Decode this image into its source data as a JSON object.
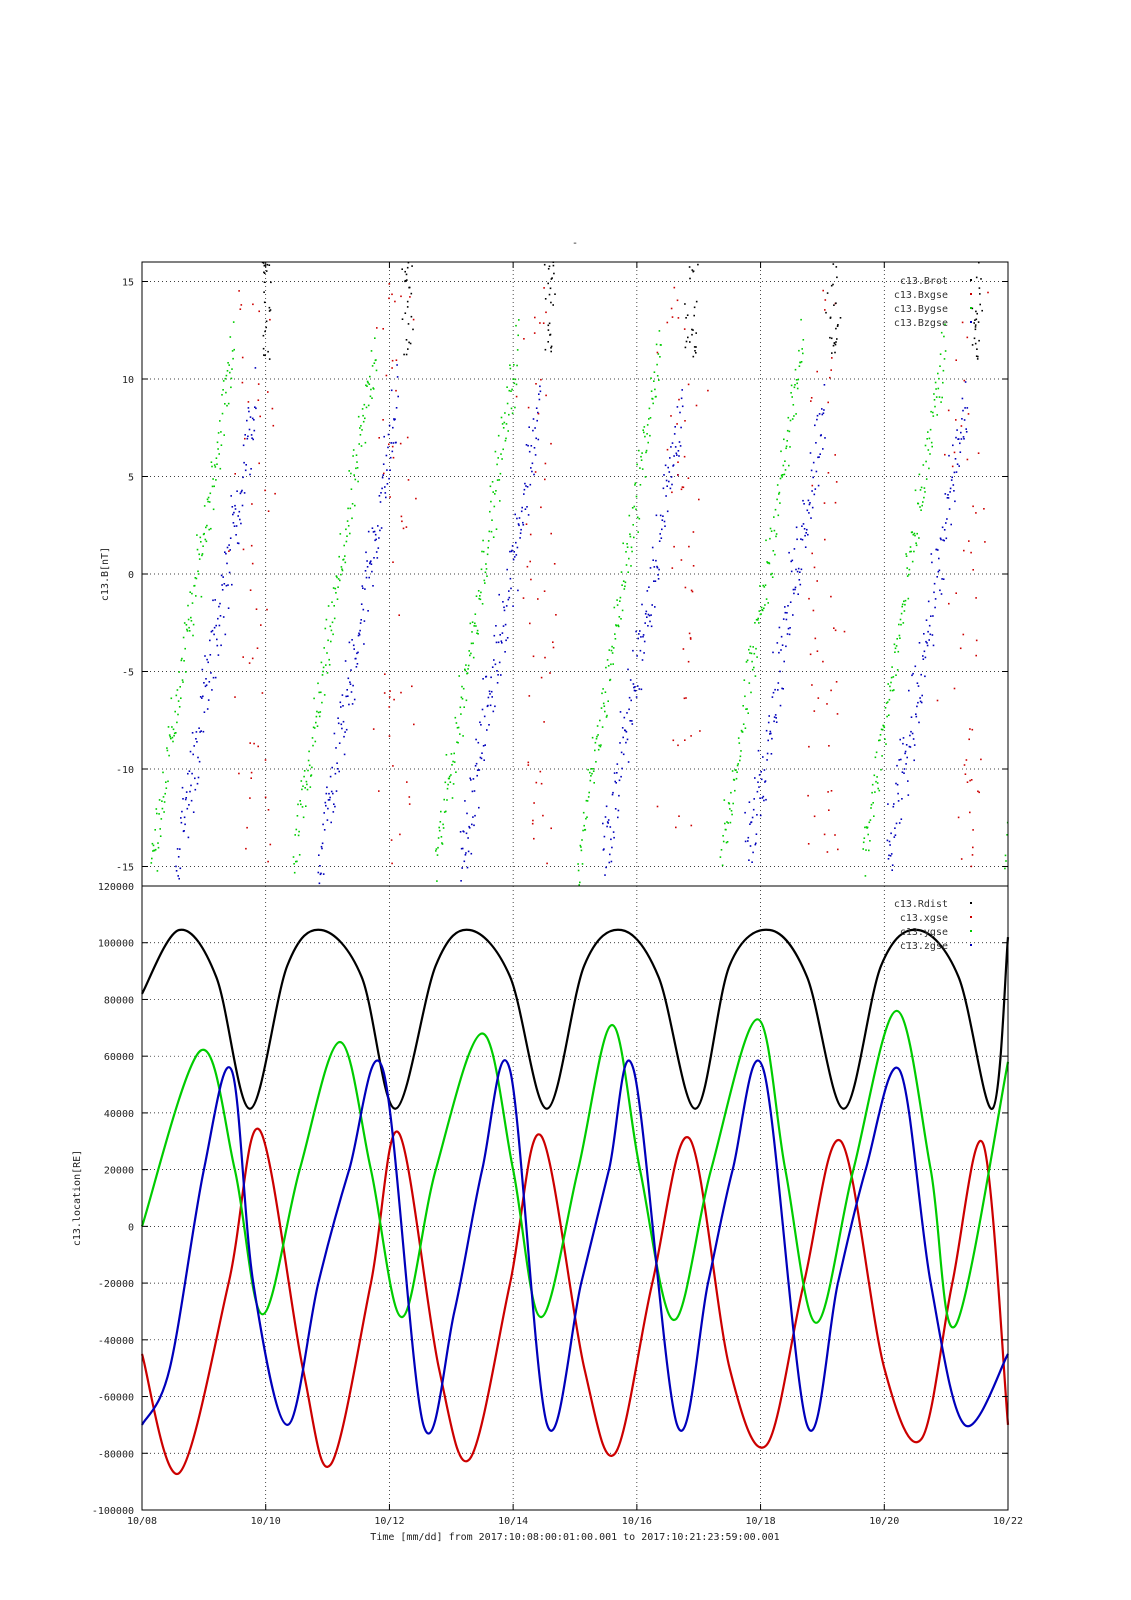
{
  "figure": {
    "top_title": "-",
    "footer": "Time [mm/dd]  from 2017:10:08:00:01:00.001  to  2017:10:21:23:59:00.001"
  },
  "chart_data": [
    {
      "type": "scatter",
      "ylabel": "c13.B[nT]",
      "xlim": [
        "10/08",
        "10/22"
      ],
      "ylim": [
        -16,
        16
      ],
      "yticks": [
        15,
        10,
        5,
        0,
        -5,
        -10,
        -15
      ],
      "grid": true,
      "legend_placement": "top-right",
      "legend": [
        "c13.Brot",
        "c13.Bxgse",
        "c13.Bygse",
        "c13.Bzgse"
      ],
      "colors": [
        "#000000",
        "#cc0000",
        "#00cc00",
        "#0000bb"
      ],
      "series": [
        {
          "name": "c13.Brot",
          "color": "#000000"
        },
        {
          "name": "c13.Bxgse",
          "color": "#cc0000"
        },
        {
          "name": "c13.Bygse",
          "color": "#00cc00"
        },
        {
          "name": "c13.Bzgse",
          "color": "#0000bb"
        }
      ]
    },
    {
      "type": "line",
      "ylabel": "c13.location[RE]",
      "xlabel": "Time [mm/dd]",
      "ylim": [
        -100000,
        120000
      ],
      "yticks": [
        120000,
        100000,
        80000,
        60000,
        40000,
        20000,
        0,
        -20000,
        -40000,
        -60000,
        -80000,
        -100000
      ],
      "xticks": [
        "10/08",
        "10/10",
        "10/12",
        "10/14",
        "10/16",
        "10/18",
        "10/20",
        "10/22"
      ],
      "grid": true,
      "legend_placement": "top-right",
      "legend": [
        "c13.Rdist",
        "c13.xgse",
        "c13.ygse",
        "c13.zgse"
      ],
      "colors": [
        "#000000",
        "#cc0000",
        "#00cc00",
        "#0000bb"
      ],
      "series": [
        {
          "name": "c13.Rdist",
          "color": "#000000",
          "x": [
            0.0,
            0.6,
            1.2,
            1.75,
            2.35,
            2.9,
            3.55,
            4.1,
            4.75,
            5.3,
            5.95,
            6.55,
            7.15,
            7.75,
            8.35,
            8.95,
            9.5,
            10.15,
            10.75,
            11.35,
            11.95,
            12.55,
            13.2,
            13.75,
            14.0
          ],
          "y": [
            82000,
            104500,
            88000,
            41500,
            92000,
            104500,
            88000,
            41500,
            92000,
            104500,
            88000,
            41500,
            92000,
            104500,
            88000,
            41500,
            92000,
            104500,
            88000,
            41500,
            92000,
            104500,
            88000,
            41500,
            102000
          ]
        },
        {
          "name": "c13.xgse",
          "color": "#cc0000",
          "x": [
            0.0,
            0.6,
            1.4,
            1.9,
            2.6,
            3.05,
            3.7,
            4.15,
            4.8,
            5.3,
            5.95,
            6.45,
            7.15,
            7.65,
            8.25,
            8.85,
            9.5,
            10.1,
            10.7,
            11.3,
            12.0,
            12.6,
            13.1,
            13.6,
            14.0
          ],
          "y": [
            -45000,
            -87000,
            -20000,
            34000,
            -50000,
            -84000,
            -20000,
            33000,
            -50000,
            -82000,
            -20000,
            32000,
            -50000,
            -80000,
            -20000,
            31000,
            -50000,
            -77000,
            -20000,
            30000,
            -50000,
            -75000,
            -20000,
            29000,
            -70000
          ]
        },
        {
          "name": "c13.ygse",
          "color": "#00cc00",
          "x": [
            0.0,
            0.95,
            1.5,
            1.95,
            2.55,
            3.2,
            3.7,
            4.2,
            4.75,
            5.5,
            6.0,
            6.45,
            7.05,
            7.6,
            8.05,
            8.6,
            9.2,
            9.95,
            10.4,
            10.9,
            11.5,
            12.2,
            12.75,
            13.15,
            14.0
          ],
          "y": [
            0,
            62000,
            20000,
            -31000,
            20000,
            65000,
            20000,
            -32000,
            20000,
            68000,
            20000,
            -32000,
            20000,
            71000,
            20000,
            -33000,
            20000,
            73000,
            20000,
            -34000,
            20000,
            76000,
            20000,
            -35000,
            58000
          ]
        },
        {
          "name": "c13.zgse",
          "color": "#0000bb",
          "x": [
            0.0,
            0.45,
            1.0,
            1.45,
            1.8,
            2.35,
            2.85,
            3.35,
            3.9,
            4.55,
            5.05,
            5.5,
            5.95,
            6.55,
            7.1,
            7.55,
            7.95,
            8.65,
            9.15,
            9.55,
            10.05,
            10.75,
            11.25,
            11.7,
            12.25,
            12.75,
            13.3,
            14.0
          ],
          "y": [
            -70000,
            -50000,
            20000,
            55000,
            -20000,
            -70000,
            -20000,
            20000,
            55000,
            -70000,
            -30000,
            20000,
            55000,
            -70000,
            -20000,
            20000,
            55000,
            -70000,
            -20000,
            20000,
            55000,
            -70000,
            -20000,
            20000,
            55000,
            -20000,
            -70000,
            -45000
          ]
        }
      ]
    }
  ]
}
